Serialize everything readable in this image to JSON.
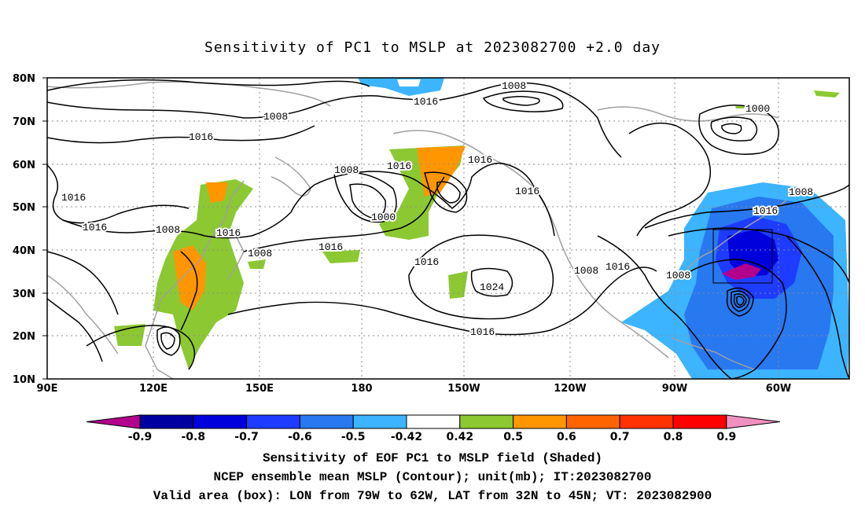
{
  "title": "Sensitivity of PC1 to MSLP at 2023082700 +2.0 day",
  "map": {
    "lat_ticks": [
      "80N",
      "70N",
      "60N",
      "50N",
      "40N",
      "30N",
      "20N",
      "10N"
    ],
    "lon_ticks": [
      "90E",
      "120E",
      "150E",
      "180",
      "150W",
      "120W",
      "90W",
      "60W"
    ],
    "contour_labels": [
      "1008",
      "1016",
      "1008",
      "1000",
      "1016",
      "1008",
      "1016",
      "1016",
      "1016",
      "1008",
      "1000",
      "1016",
      "1016",
      "1008",
      "1016",
      "1016",
      "1008",
      "1024",
      "1008",
      "1016",
      "1016",
      "1008",
      "1016",
      "1016"
    ],
    "box": {
      "lon": "79W to 62W",
      "lat": "32N to 45N"
    }
  },
  "colorbar": {
    "labels": [
      "-0.9",
      "-0.8",
      "-0.7",
      "-0.6",
      "-0.5",
      "-0.42",
      "0.42",
      "0.5",
      "0.6",
      "0.7",
      "0.8",
      "0.9"
    ],
    "colors": [
      "#b3008c",
      "#0000a0",
      "#0000dc",
      "#1e3cff",
      "#2878f0",
      "#3cb4ff",
      "#ffffff",
      "#8cc832",
      "#ff9600",
      "#ff6400",
      "#ff3200",
      "#ff0000",
      "#f090c0"
    ]
  },
  "captions": [
    "Sensitivity of EOF PC1 to MSLP field (Shaded)",
    "NCEP ensemble mean MSLP (Contour); unit(mb); IT:2023082700",
    "Valid area (box): LON from 79W to 62W, LAT from 32N to 45N; VT: 2023082900"
  ]
}
